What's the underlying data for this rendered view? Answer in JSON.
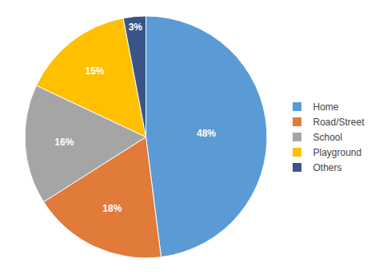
{
  "chart_data": {
    "type": "pie",
    "categories": [
      "Home",
      "Road/Street",
      "School",
      "Playground",
      "Others"
    ],
    "values": [
      48,
      18,
      16,
      15,
      3
    ],
    "value_labels": [
      "48%",
      "18%",
      "16%",
      "15%",
      "3%"
    ],
    "colors": [
      "#5B9BD5",
      "#E07B39",
      "#A5A5A5",
      "#FFC000",
      "#3B5488"
    ],
    "data_labels": true,
    "legend": "right"
  }
}
